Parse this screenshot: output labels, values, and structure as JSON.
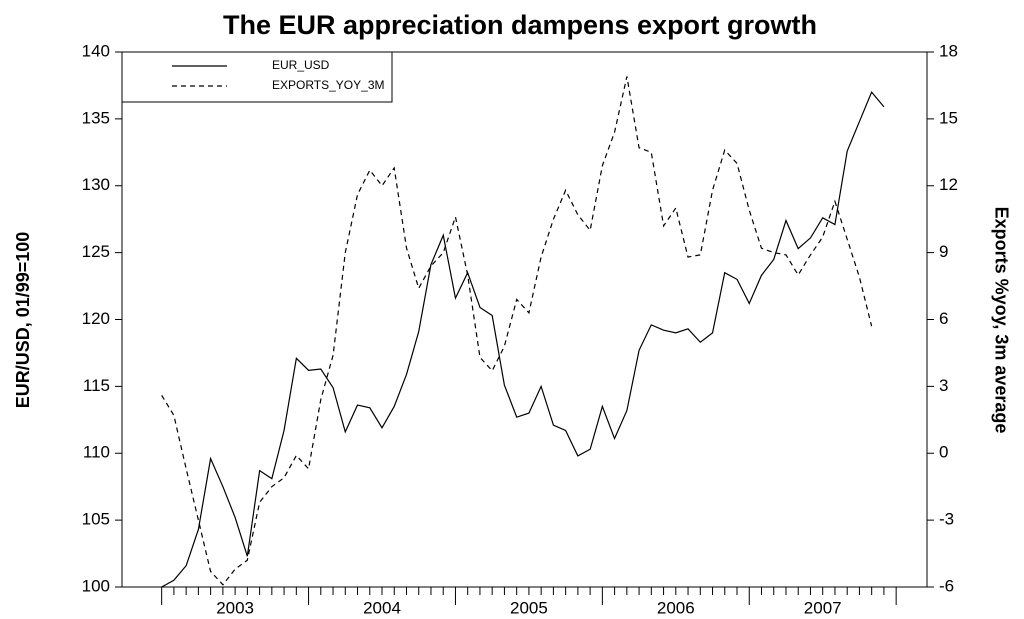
{
  "chart_data": {
    "type": "line",
    "title": "The EUR appreciation dampens export growth",
    "ylabel": "EUR/USD, 01/99=100",
    "y2label": "Exports %yoy, 3m average",
    "x": [
      2003,
      2003.083,
      2003.167,
      2003.25,
      2003.333,
      2003.417,
      2003.5,
      2003.583,
      2003.667,
      2003.75,
      2003.833,
      2003.917,
      2004,
      2004.083,
      2004.167,
      2004.25,
      2004.333,
      2004.417,
      2004.5,
      2004.583,
      2004.667,
      2004.75,
      2004.833,
      2004.917,
      2005,
      2005.083,
      2005.167,
      2005.25,
      2005.333,
      2005.417,
      2005.5,
      2005.583,
      2005.667,
      2005.75,
      2005.833,
      2005.917,
      2006,
      2006.083,
      2006.167,
      2006.25,
      2006.333,
      2006.417,
      2006.5,
      2006.583,
      2006.667,
      2006.75,
      2006.833,
      2006.917,
      2007,
      2007.083,
      2007.167,
      2007.25,
      2007.333,
      2007.417,
      2007.5,
      2007.583,
      2007.667,
      2007.75,
      2007.833,
      2007.917
    ],
    "series": [
      {
        "name": "EUR_USD",
        "color": "#000000",
        "dash": "solid",
        "axis": "y",
        "values": [
          100.0,
          100.5,
          101.6,
          104.3,
          109.6,
          107.5,
          105.2,
          102.3,
          108.7,
          108.1,
          111.7,
          117.1,
          116.2,
          116.3,
          114.9,
          111.6,
          113.6,
          113.4,
          111.9,
          113.5,
          115.9,
          119.1,
          124.1,
          126.3,
          121.6,
          123.5,
          120.9,
          120.3,
          115.1,
          112.7,
          113.0,
          115.0,
          112.1,
          111.7,
          109.8,
          110.3,
          113.5,
          111.1,
          113.2,
          117.7,
          119.6,
          119.2,
          119.0,
          119.3,
          118.3,
          119.0,
          123.5,
          123.0,
          121.2,
          123.3,
          124.5,
          127.4,
          125.3,
          126.1,
          127.6,
          127.1,
          132.6,
          134.8,
          137.0,
          135.9
        ]
      },
      {
        "name": "EXPORTS_YOY_3M",
        "color": "#000000",
        "dash": "dashed",
        "axis": "y2",
        "values": [
          2.6,
          1.7,
          -0.7,
          -3.0,
          -5.3,
          -5.9,
          -5.2,
          -4.8,
          -2.2,
          -1.5,
          -1.1,
          -0.1,
          -0.7,
          2.4,
          4.4,
          9.0,
          11.6,
          12.7,
          12.0,
          12.8,
          9.2,
          7.4,
          8.4,
          9.0,
          10.6,
          8.0,
          4.3,
          3.7,
          4.8,
          6.9,
          6.3,
          8.8,
          10.5,
          11.8,
          10.7,
          10.0,
          12.9,
          14.4,
          16.9,
          13.7,
          13.5,
          10.2,
          11.0,
          8.8,
          8.9,
          11.8,
          13.6,
          13.0,
          10.9,
          9.2,
          9.0,
          8.9,
          8.0,
          8.9,
          9.7,
          11.3,
          9.6,
          7.9,
          5.7,
          null
        ]
      }
    ],
    "xlim": [
      2002.73,
      2008.21
    ],
    "xticks": [
      {
        "value": 2003.5,
        "label": "2003"
      },
      {
        "value": 2004.5,
        "label": "2004"
      },
      {
        "value": 2005.5,
        "label": "2005"
      },
      {
        "value": 2006.5,
        "label": "2006"
      },
      {
        "value": 2007.5,
        "label": "2007"
      }
    ],
    "year_tick_marks": [
      2003,
      2004,
      2005,
      2006,
      2007,
      2008
    ],
    "ylim": [
      100,
      140
    ],
    "yticks": [
      100,
      105,
      110,
      115,
      120,
      125,
      130,
      135,
      140
    ],
    "y2lim": [
      -6,
      18
    ],
    "y2ticks": [
      -6,
      -3,
      0,
      3,
      6,
      9,
      12,
      15,
      18
    ],
    "legend": "upper left",
    "grid": false
  }
}
